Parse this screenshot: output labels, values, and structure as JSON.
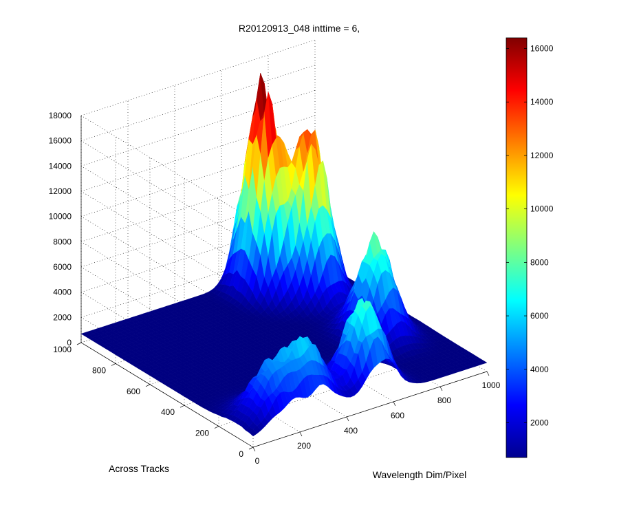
{
  "chart_data": {
    "type": "surface",
    "title": "R20120913_048 inttime = 6,",
    "xlabel": "Wavelength Dim/Pixel",
    "ylabel": "Across Tracks",
    "zlabel": "",
    "x_ticks": [
      "0",
      "200",
      "400",
      "600",
      "800",
      "1000"
    ],
    "y_ticks": [
      "0",
      "200",
      "400",
      "600",
      "800",
      "1000"
    ],
    "z_ticks": [
      "0",
      "2000",
      "4000",
      "6000",
      "8000",
      "10000",
      "12000",
      "14000",
      "16000",
      "18000"
    ],
    "xlim": [
      0,
      1000
    ],
    "ylim": [
      0,
      1000
    ],
    "zlim": [
      0,
      18000
    ],
    "grid": true,
    "colormap": "jet",
    "colorbar": {
      "range": [
        700,
        16400
      ],
      "ticks": [
        "2000",
        "4000",
        "6000",
        "8000",
        "10000",
        "12000",
        "14000",
        "16000"
      ],
      "placement": "right"
    },
    "peaks": [
      {
        "wavelength_pixel": 700,
        "across_track": 900,
        "value": 16400
      },
      {
        "wavelength_pixel": 820,
        "across_track": 780,
        "value": 13500
      },
      {
        "wavelength_pixel": 820,
        "across_track": 400,
        "value": 8000
      },
      {
        "wavelength_pixel": 550,
        "across_track": 100,
        "value": 7500
      },
      {
        "wavelength_pixel": 300,
        "across_track": 100,
        "value": 5500
      },
      {
        "wavelength_pixel": 150,
        "across_track": 100,
        "value": 4500
      }
    ],
    "baseline": 700
  }
}
